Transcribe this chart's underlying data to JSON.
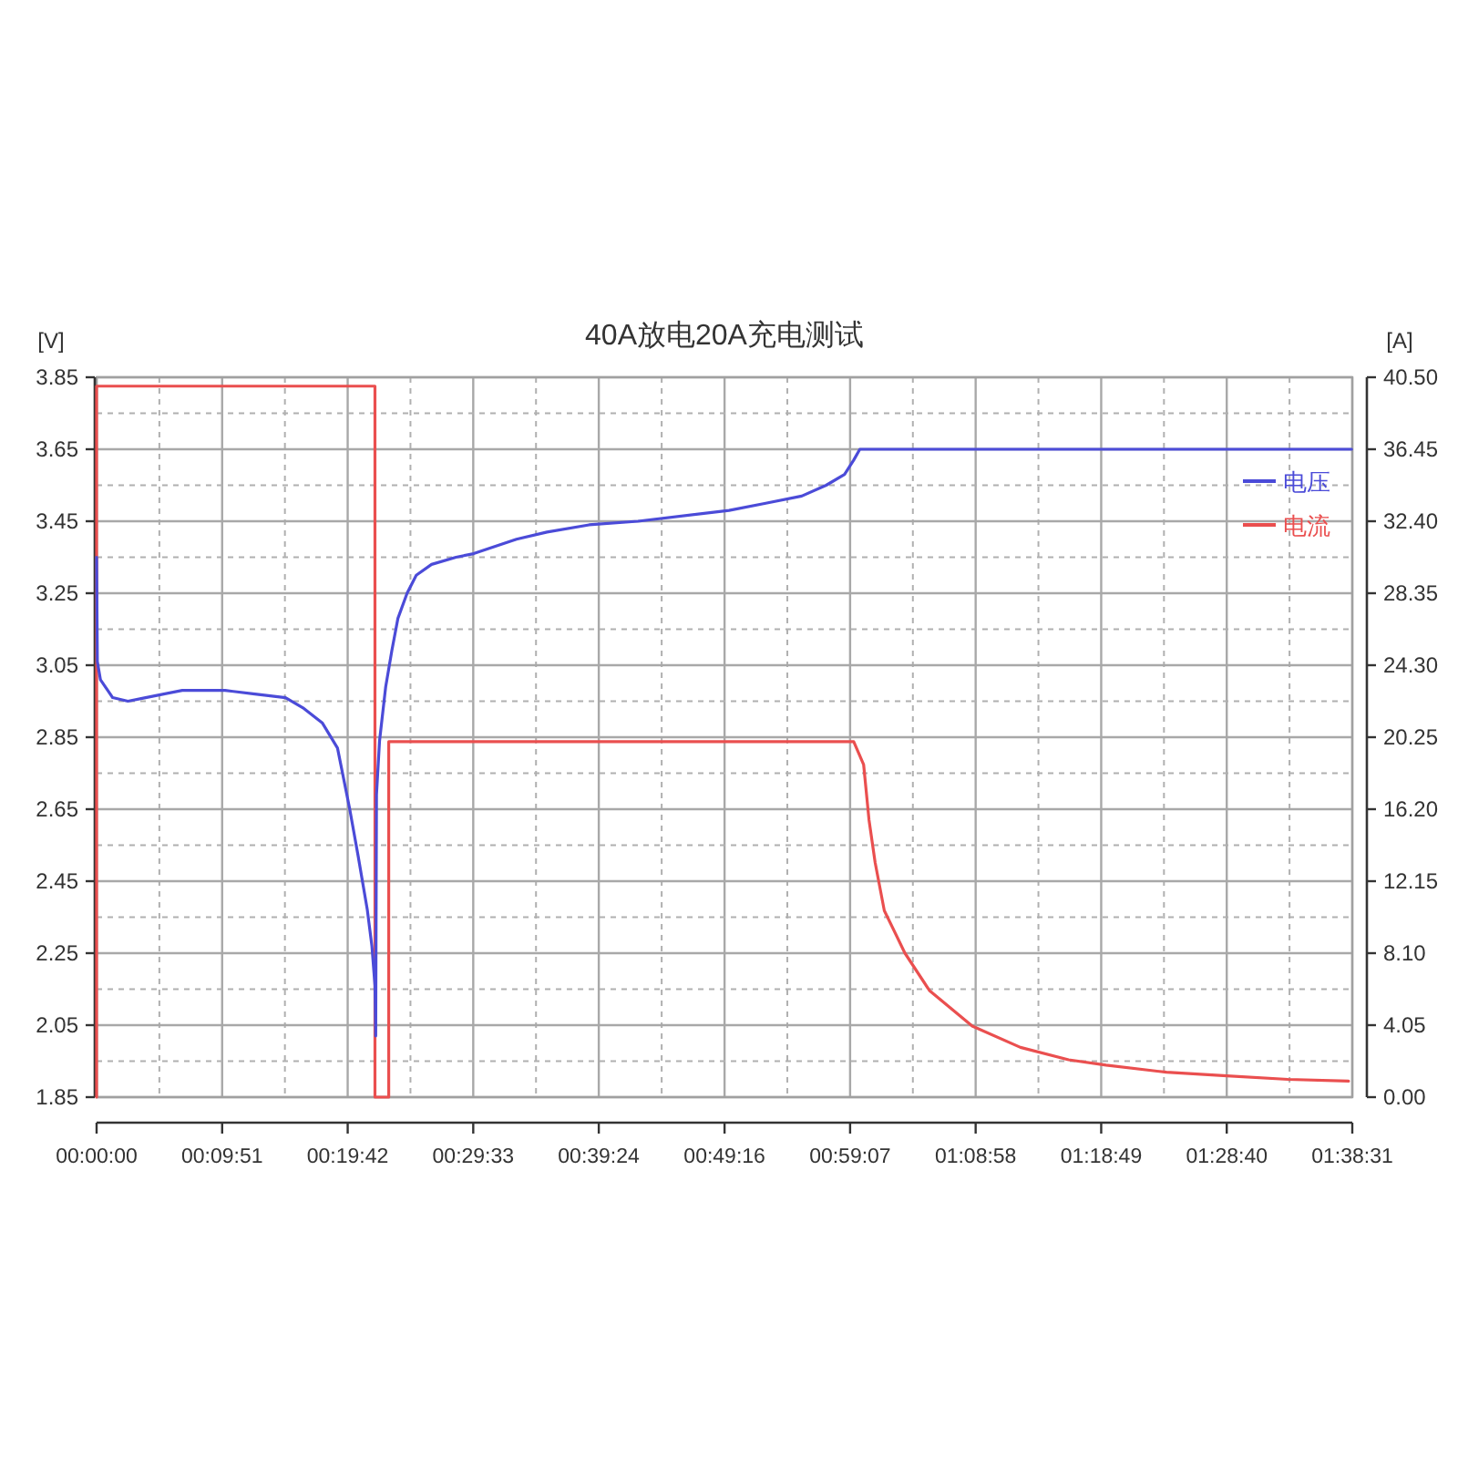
{
  "chart_data": {
    "type": "line",
    "title": "40A放电20A充电测试",
    "ylabel": "[V]",
    "y2label": "[A]",
    "xlim": [
      0,
      1.641944
    ],
    "xticks": [
      {
        "value": 0,
        "label": "00:00:00"
      },
      {
        "value": 0.164167,
        "label": "00:09:51"
      },
      {
        "value": 0.328333,
        "label": "00:19:42"
      },
      {
        "value": 0.4925,
        "label": "00:29:33"
      },
      {
        "value": 0.656667,
        "label": "00:39:24"
      },
      {
        "value": 0.821111,
        "label": "00:49:16"
      },
      {
        "value": 0.985278,
        "label": "00:59:07"
      },
      {
        "value": 1.149444,
        "label": "01:08:58"
      },
      {
        "value": 1.313611,
        "label": "01:18:49"
      },
      {
        "value": 1.477778,
        "label": "01:28:40"
      },
      {
        "value": 1.641944,
        "label": "01:38:31"
      }
    ],
    "ylim": [
      1.85,
      3.85
    ],
    "yticks": [
      1.85,
      2.05,
      2.25,
      2.45,
      2.65,
      2.85,
      3.05,
      3.25,
      3.45,
      3.65,
      3.85
    ],
    "y2lim": [
      0,
      40.5
    ],
    "y2ticks": [
      {
        "value": 0,
        "label": "0.00"
      },
      4.05,
      {
        "value": 8.1,
        "label": "8.10"
      },
      12.15,
      {
        "value": 16.2,
        "label": "16.20"
      },
      20.25,
      {
        "value": 24.3,
        "label": "24.30"
      },
      28.35,
      {
        "value": 32.4,
        "label": "32.40"
      },
      36.45,
      {
        "value": 40.5,
        "label": "40.50"
      }
    ],
    "grid": true,
    "legend": "top right",
    "series": [
      {
        "name": "电压",
        "color": "#4b4bd8",
        "x": [
          0,
          0.001,
          0.005,
          0.021,
          0.041,
          0.064,
          0.112,
          0.168,
          0.207,
          0.247,
          0.271,
          0.295,
          0.315,
          0.331,
          0.342,
          0.354,
          0.36,
          0.364,
          0.365,
          0.366,
          0.37,
          0.378,
          0.386,
          0.394,
          0.406,
          0.418,
          0.438,
          0.47,
          0.493,
          0.549,
          0.589,
          0.644,
          0.708,
          0.827,
          0.875,
          0.922,
          0.954,
          0.978,
          0.99,
          0.998,
          1.641
        ],
        "values": [
          3.35,
          3.06,
          3.01,
          2.96,
          2.95,
          2.96,
          2.98,
          2.98,
          2.97,
          2.96,
          2.93,
          2.89,
          2.82,
          2.65,
          2.52,
          2.37,
          2.27,
          2.16,
          2.02,
          2.69,
          2.84,
          2.99,
          3.09,
          3.18,
          3.25,
          3.3,
          3.33,
          3.35,
          3.36,
          3.4,
          3.42,
          3.44,
          3.45,
          3.48,
          3.5,
          3.52,
          3.55,
          3.58,
          3.62,
          3.65,
          3.65
        ]
      },
      {
        "name": "电流",
        "color": "#ea4f4f",
        "axis": "y2",
        "x": [
          0,
          0,
          0.364,
          0.364,
          0.382,
          0.382,
          0.99,
          1.003,
          1.01,
          1.018,
          1.03,
          1.057,
          1.089,
          1.145,
          1.208,
          1.271,
          1.32,
          1.399,
          1.478,
          1.558,
          1.637
        ],
        "values": [
          0,
          40,
          40,
          0,
          0,
          20,
          20,
          18.7,
          15.6,
          13.2,
          10.5,
          8.1,
          6.0,
          4.0,
          2.8,
          2.1,
          1.8,
          1.4,
          1.2,
          1.0,
          0.9
        ]
      }
    ]
  }
}
